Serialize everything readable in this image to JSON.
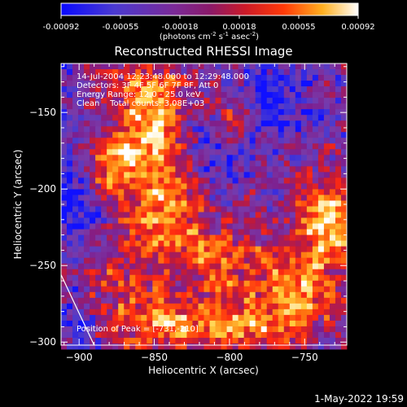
{
  "chart_data": {
    "type": "heatmap",
    "title": "Reconstructed RHESSI Image",
    "xlabel": "Heliocentric X (arcsec)",
    "ylabel": "Heliocentric Y (arcsec)",
    "xlim": [
      -912,
      -722
    ],
    "ylim": [
      -302,
      -118
    ],
    "x_ticks": [
      -900,
      -850,
      -800,
      -750
    ],
    "y_ticks": [
      -150,
      -200,
      -250,
      -300
    ],
    "colorbar": {
      "ticks": [
        "-0.00092",
        "-0.00055",
        "-0.00018",
        "0.00018",
        "0.00055",
        "0.00092"
      ],
      "range": [
        -0.00092,
        0.00092
      ],
      "units": "(photons cm",
      "units_sup1": "-2",
      "units_mid": " s",
      "units_sup2": "-1",
      "units_mid2": " asec",
      "units_sup3": "-2",
      "units_end": ")"
    },
    "annotations": {
      "time": "14-Jul-2004 12:23:48.000 to 12:29:48.000",
      "detectors": "Detectors: 3F 4F 5F 6F 7F 8F, Att 0",
      "energy": "Energy Range: 12.0 - 25.0 keV",
      "clean": "Clean    Total counts: 3.08E+03",
      "peak": "Position of Peak = [-731,-210]"
    },
    "peak": {
      "x": -731,
      "y": -210
    },
    "limb_line": [
      [
        -912,
        -256
      ],
      [
        -890,
        -302
      ]
    ],
    "hot_regions": [
      {
        "x": -852,
        "y": -155,
        "sx": 18,
        "sy": 26,
        "a": 1.3
      },
      {
        "x": -880,
        "y": -185,
        "sx": 14,
        "sy": 14,
        "a": 0.9
      },
      {
        "x": -842,
        "y": -212,
        "sx": 16,
        "sy": 20,
        "a": 1.1
      },
      {
        "x": -810,
        "y": -250,
        "sx": 28,
        "sy": 18,
        "a": 0.9
      },
      {
        "x": -735,
        "y": -218,
        "sx": 12,
        "sy": 20,
        "a": 1.4
      },
      {
        "x": -755,
        "y": -270,
        "sx": 18,
        "sy": 22,
        "a": 1.0
      },
      {
        "x": -845,
        "y": -285,
        "sx": 30,
        "sy": 12,
        "a": 1.0
      },
      {
        "x": -880,
        "y": -250,
        "sx": 14,
        "sy": 14,
        "a": 0.6
      },
      {
        "x": -800,
        "y": -150,
        "sx": 10,
        "sy": 10,
        "a": 0.7
      },
      {
        "x": -790,
        "y": -290,
        "sx": 20,
        "sy": 8,
        "a": 0.8
      }
    ],
    "cold_regions": [
      {
        "x": -900,
        "y": -200,
        "sx": 12,
        "sy": 30,
        "a": 0.8
      },
      {
        "x": -815,
        "y": -170,
        "sx": 18,
        "sy": 20,
        "a": 0.6
      },
      {
        "x": -770,
        "y": -140,
        "sx": 20,
        "sy": 18,
        "a": 0.7
      },
      {
        "x": -900,
        "y": -290,
        "sx": 10,
        "sy": 14,
        "a": 0.7
      },
      {
        "x": -825,
        "y": -260,
        "sx": 10,
        "sy": 12,
        "a": 0.5
      },
      {
        "x": -740,
        "y": -300,
        "sx": 12,
        "sy": 8,
        "a": 0.6
      }
    ]
  },
  "footer": {
    "date": "1-May-2022 19:59"
  },
  "colors": {
    "background": "#000000",
    "text": "#ffffff",
    "colormap": [
      "#1010ff",
      "#4a3acf",
      "#7a3aa8",
      "#7d1f8f",
      "#c01a3a",
      "#ff2a10",
      "#ff7a10",
      "#ffd040",
      "#ffffff"
    ]
  }
}
